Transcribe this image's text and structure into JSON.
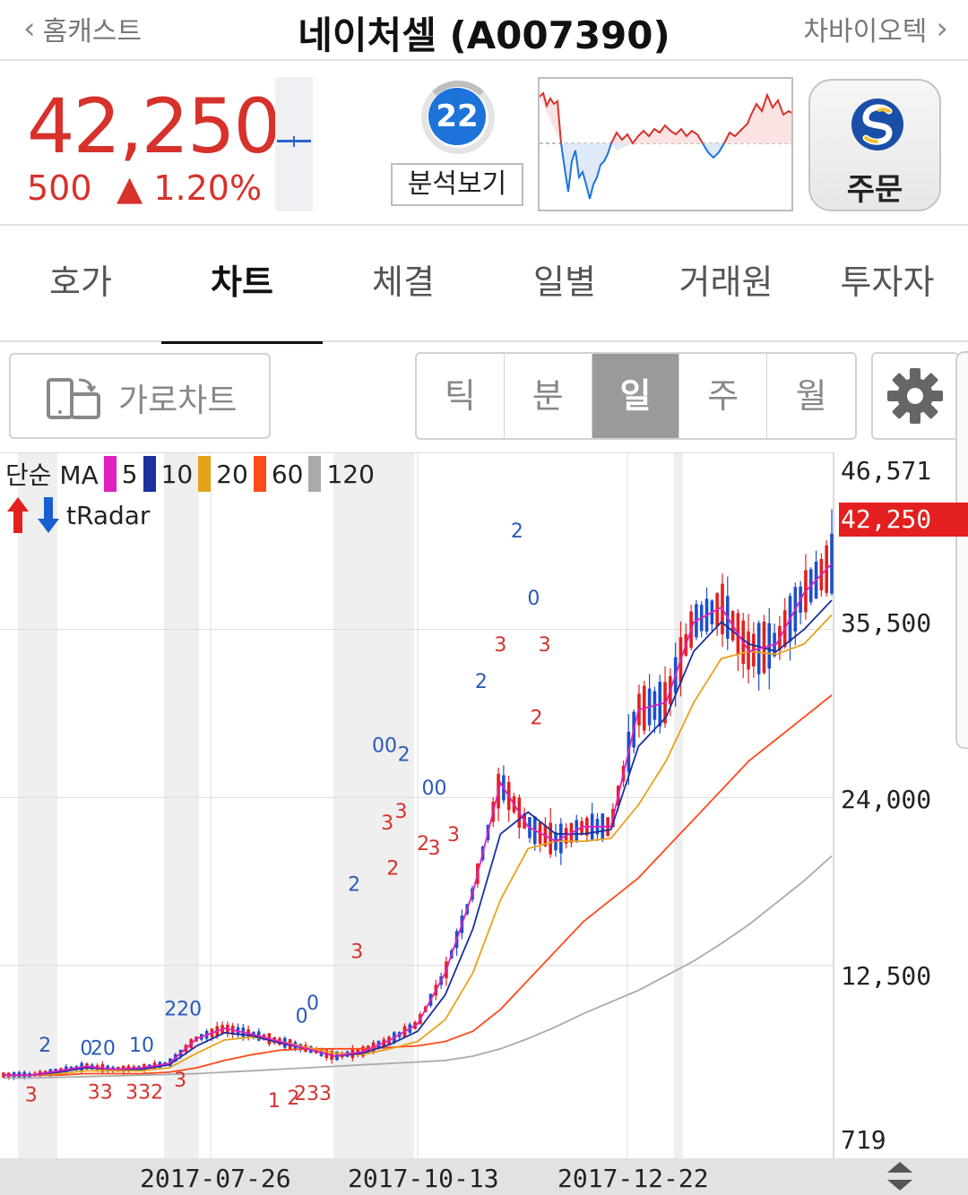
{
  "header": {
    "prev_label": "홈캐스트",
    "title": "네이처셀 (A007390)",
    "next_label": "차바이오텍",
    "prev_icon": "chevron-left-icon",
    "next_icon": "chevron-right-icon"
  },
  "quote": {
    "price": "42,250",
    "change": "500",
    "change_pct": "1.20%",
    "direction_icon": "triangle-up-icon",
    "up_color": "#d7312c",
    "analysis_score": "22",
    "analysis_label": "분석보기",
    "order_label": "주문",
    "order_logo": "shinhan-logo-icon"
  },
  "tabs": [
    {
      "label": "호가"
    },
    {
      "label": "차트"
    },
    {
      "label": "체결"
    },
    {
      "label": "일별"
    },
    {
      "label": "거래원"
    },
    {
      "label": "투자자"
    }
  ],
  "active_tab": "차트",
  "toolbar": {
    "landscape_label": "가로차트",
    "periods": [
      {
        "label": "틱"
      },
      {
        "label": "분"
      },
      {
        "label": "일"
      },
      {
        "label": "주"
      },
      {
        "label": "월"
      }
    ],
    "active_period": "일",
    "settings_icon": "gear-icon"
  },
  "chart_data": {
    "type": "line",
    "legend": {
      "prefix": "단순 MA",
      "items": [
        {
          "label": "5",
          "color": "#e020c0"
        },
        {
          "label": "10",
          "color": "#1a2fa0"
        },
        {
          "label": "20",
          "color": "#e8a21a"
        },
        {
          "label": "60",
          "color": "#ff4a1a"
        },
        {
          "label": "120",
          "color": "#aaaaaa"
        }
      ],
      "tradar_label": "tRadar"
    },
    "y_ticks": [
      "46,571",
      "35,500",
      "24,000",
      "12,500",
      "719"
    ],
    "current_price_label": "42,250",
    "x_ticks": [
      "2017-07-26",
      "2017-10-13",
      "2017-12-22"
    ],
    "ylim": [
      719,
      46571
    ],
    "series": [
      {
        "name": "5",
        "color": "#e020c0",
        "values": [
          5000,
          5000,
          5300,
          5600,
          5400,
          5500,
          5800,
          7500,
          8200,
          7800,
          7300,
          6800,
          6300,
          6600,
          7400,
          8500,
          12000,
          17500,
          25000,
          22000,
          21000,
          22000,
          22000,
          30000,
          30500,
          36000,
          37000,
          34000,
          34500,
          38000,
          40000
        ]
      },
      {
        "name": "10",
        "color": "#1a2fa0",
        "values": [
          5000,
          5000,
          5200,
          5500,
          5400,
          5400,
          5700,
          7000,
          7900,
          7700,
          7200,
          6800,
          6300,
          6500,
          7100,
          8000,
          10500,
          15000,
          21500,
          23000,
          21500,
          21500,
          21800,
          27500,
          29500,
          34000,
          36000,
          34500,
          34000,
          35500,
          37500
        ]
      },
      {
        "name": "20",
        "color": "#e8a21a",
        "values": [
          5000,
          5000,
          5100,
          5300,
          5300,
          5300,
          5500,
          6500,
          7400,
          7600,
          7300,
          6900,
          6500,
          6400,
          6800,
          7300,
          8800,
          12000,
          17000,
          20500,
          21000,
          21000,
          21200,
          23500,
          26500,
          30500,
          33500,
          34000,
          33800,
          34500,
          36500
        ]
      },
      {
        "name": "60",
        "color": "#ff4a1a",
        "values": [
          5000,
          5000,
          5000,
          5100,
          5100,
          5100,
          5200,
          5500,
          6000,
          6400,
          6700,
          6800,
          6800,
          6800,
          6900,
          7000,
          7300,
          8000,
          9500,
          11500,
          13500,
          15500,
          17000,
          18500,
          20500,
          22500,
          24500,
          26500,
          28000,
          29500,
          31000
        ]
      },
      {
        "name": "120",
        "color": "#aaaaaa",
        "values": [
          4800,
          4800,
          4850,
          4900,
          4950,
          5000,
          5050,
          5100,
          5200,
          5300,
          5400,
          5500,
          5600,
          5700,
          5800,
          5900,
          6000,
          6300,
          6800,
          7500,
          8300,
          9200,
          10000,
          10800,
          11800,
          12800,
          14000,
          15300,
          16800,
          18300,
          20000
        ]
      }
    ],
    "signals": [
      {
        "t": "2",
        "i": 1.5,
        "y": 6600,
        "c": "#2a5ab8"
      },
      {
        "t": "3",
        "i": 1.0,
        "y": 3200,
        "c": "#d7312c"
      },
      {
        "t": "0",
        "i": 3.0,
        "y": 6400,
        "c": "#2a5ab8"
      },
      {
        "t": "20",
        "i": 3.6,
        "y": 6400,
        "c": "#2a5ab8"
      },
      {
        "t": "33",
        "i": 3.5,
        "y": 3400,
        "c": "#d7312c"
      },
      {
        "t": "10",
        "i": 5.0,
        "y": 6600,
        "c": "#2a5ab8"
      },
      {
        "t": "332",
        "i": 5.1,
        "y": 3400,
        "c": "#d7312c"
      },
      {
        "t": "220",
        "i": 6.5,
        "y": 9100,
        "c": "#2a5ab8"
      },
      {
        "t": "3",
        "i": 6.4,
        "y": 4200,
        "c": "#d7312c"
      },
      {
        "t": "1",
        "i": 9.8,
        "y": 2800,
        "c": "#d7312c"
      },
      {
        "t": "2",
        "i": 10.5,
        "y": 3000,
        "c": "#d7312c"
      },
      {
        "t": "233",
        "i": 11.2,
        "y": 3300,
        "c": "#d7312c"
      },
      {
        "t": "0",
        "i": 10.8,
        "y": 8600,
        "c": "#2a5ab8"
      },
      {
        "t": "0",
        "i": 11.2,
        "y": 9500,
        "c": "#2a5ab8"
      },
      {
        "t": "2",
        "i": 12.7,
        "y": 17600,
        "c": "#2a5ab8"
      },
      {
        "t": "3",
        "i": 12.8,
        "y": 13000,
        "c": "#d7312c"
      },
      {
        "t": "00",
        "i": 13.8,
        "y": 27100,
        "c": "#2a5ab8"
      },
      {
        "t": "2",
        "i": 14.5,
        "y": 26500,
        "c": "#2a5ab8"
      },
      {
        "t": "3",
        "i": 13.9,
        "y": 21800,
        "c": "#d7312c"
      },
      {
        "t": "3",
        "i": 14.4,
        "y": 22600,
        "c": "#d7312c"
      },
      {
        "t": "2",
        "i": 14.1,
        "y": 18700,
        "c": "#d7312c"
      },
      {
        "t": "2",
        "i": 15.2,
        "y": 20400,
        "c": "#d7312c"
      },
      {
        "t": "00",
        "i": 15.6,
        "y": 24200,
        "c": "#2a5ab8"
      },
      {
        "t": "3",
        "i": 15.6,
        "y": 20100,
        "c": "#d7312c"
      },
      {
        "t": "3",
        "i": 16.3,
        "y": 21000,
        "c": "#d7312c"
      },
      {
        "t": "2",
        "i": 17.3,
        "y": 31500,
        "c": "#2a5ab8"
      },
      {
        "t": "3",
        "i": 18.0,
        "y": 34000,
        "c": "#d7312c"
      },
      {
        "t": "2",
        "i": 18.6,
        "y": 41800,
        "c": "#2a5ab8"
      },
      {
        "t": "0",
        "i": 19.2,
        "y": 37200,
        "c": "#2a5ab8"
      },
      {
        "t": "3",
        "i": 19.6,
        "y": 34000,
        "c": "#d7312c"
      },
      {
        "t": "2",
        "i": 19.3,
        "y": 29000,
        "c": "#d7312c"
      }
    ]
  }
}
